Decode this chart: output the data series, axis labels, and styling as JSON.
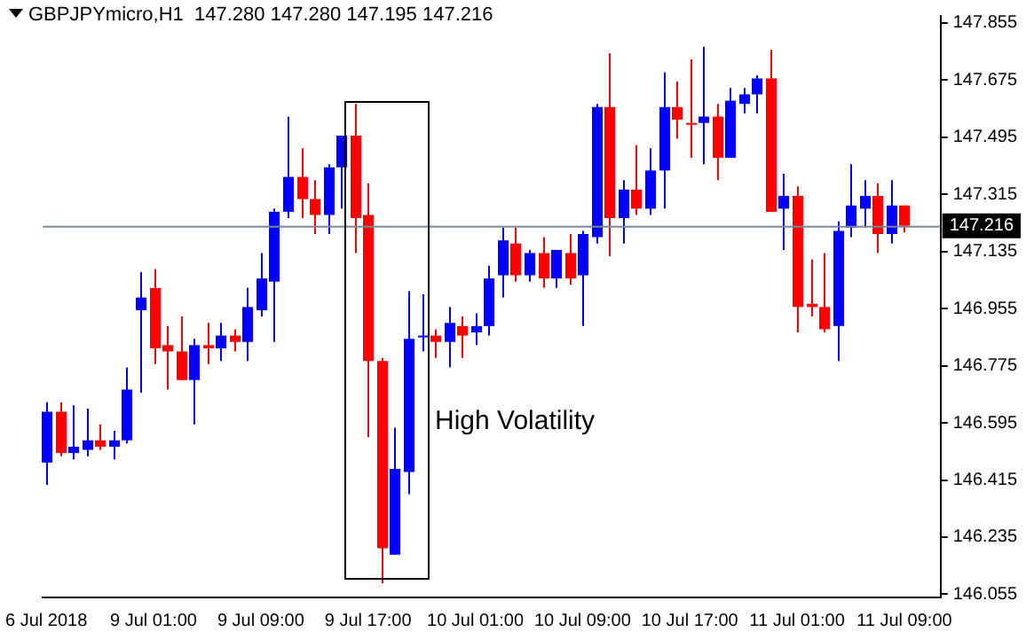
{
  "chart_data": {
    "type": "candlestick",
    "title": "GBPJPYmicro,H1  147.280 147.280 147.195 147.216",
    "categories": [
      "6 Jul 2018",
      null,
      null,
      null,
      null,
      null,
      null,
      null,
      "9 Jul 01:00",
      null,
      null,
      null,
      null,
      null,
      null,
      null,
      "9 Jul 09:00",
      null,
      null,
      null,
      null,
      null,
      null,
      null,
      "9 Jul 17:00",
      null,
      null,
      null,
      null,
      null,
      null,
      null,
      "10 Jul 01:00",
      null,
      null,
      null,
      null,
      null,
      null,
      null,
      "10 Jul 09:00",
      null,
      null,
      null,
      null,
      null,
      null,
      null,
      "10 Jul 17:00",
      null,
      null,
      null,
      null,
      null,
      null,
      null,
      "11 Jul 01:00",
      null,
      null,
      null,
      null,
      null,
      null,
      null,
      "11 Jul 09:00"
    ],
    "ohlc": [
      [
        146.47,
        146.66,
        146.4,
        146.63
      ],
      [
        146.63,
        146.66,
        146.49,
        146.5
      ],
      [
        146.5,
        146.65,
        146.48,
        146.52
      ],
      [
        146.51,
        146.64,
        146.49,
        146.54
      ],
      [
        146.54,
        146.59,
        146.51,
        146.52
      ],
      [
        146.52,
        146.57,
        146.48,
        146.54
      ],
      [
        146.54,
        146.77,
        146.53,
        146.7
      ],
      [
        146.95,
        147.07,
        146.69,
        146.99
      ],
      [
        147.02,
        147.08,
        146.78,
        146.83
      ],
      [
        146.84,
        146.9,
        146.7,
        146.82
      ],
      [
        146.82,
        146.93,
        146.73,
        146.73
      ],
      [
        146.73,
        146.86,
        146.59,
        146.84
      ],
      [
        146.84,
        146.91,
        146.78,
        146.83
      ],
      [
        146.83,
        146.91,
        146.79,
        146.87
      ],
      [
        146.87,
        146.89,
        146.82,
        146.85
      ],
      [
        146.85,
        147.02,
        146.79,
        146.96
      ],
      [
        146.95,
        147.13,
        146.93,
        147.05
      ],
      [
        147.04,
        147.27,
        146.85,
        147.26
      ],
      [
        147.26,
        147.56,
        147.24,
        147.37
      ],
      [
        147.37,
        147.46,
        147.24,
        147.3
      ],
      [
        147.3,
        147.36,
        147.19,
        147.25
      ],
      [
        147.25,
        147.41,
        147.19,
        147.4
      ],
      [
        147.4,
        147.5,
        147.27,
        147.5
      ],
      [
        147.5,
        147.6,
        147.13,
        147.24
      ],
      [
        147.25,
        147.35,
        146.55,
        146.79
      ],
      [
        146.79,
        146.8,
        146.09,
        146.2
      ],
      [
        146.18,
        146.58,
        146.18,
        146.45
      ],
      [
        146.44,
        147.01,
        146.37,
        146.86
      ],
      [
        146.87,
        147,
        146.82,
        146.87
      ],
      [
        146.87,
        146.89,
        146.8,
        146.85
      ],
      [
        146.85,
        146.96,
        146.77,
        146.91
      ],
      [
        146.9,
        146.93,
        146.8,
        146.87
      ],
      [
        146.88,
        146.94,
        146.84,
        146.9
      ],
      [
        146.9,
        147.09,
        146.87,
        147.05
      ],
      [
        147.06,
        147.21,
        146.99,
        147.17
      ],
      [
        147.16,
        147.21,
        147.04,
        147.06
      ],
      [
        147.06,
        147.14,
        147.04,
        147.13
      ],
      [
        147.13,
        147.18,
        147.02,
        147.05
      ],
      [
        147.05,
        147.14,
        147.02,
        147.14
      ],
      [
        147.13,
        147.19,
        147.03,
        147.05
      ],
      [
        147.06,
        147.2,
        146.9,
        147.19
      ],
      [
        147.18,
        147.6,
        147.16,
        147.59
      ],
      [
        147.59,
        147.76,
        147.12,
        147.24
      ],
      [
        147.24,
        147.36,
        147.16,
        147.33
      ],
      [
        147.33,
        147.47,
        147.25,
        147.27
      ],
      [
        147.27,
        147.46,
        147.25,
        147.39
      ],
      [
        147.39,
        147.7,
        147.27,
        147.59
      ],
      [
        147.59,
        147.67,
        147.49,
        147.55
      ],
      [
        147.54,
        147.74,
        147.43,
        147.54
      ],
      [
        147.54,
        147.78,
        147.41,
        147.56
      ],
      [
        147.56,
        147.6,
        147.36,
        147.43
      ],
      [
        147.43,
        147.65,
        147.43,
        147.61
      ],
      [
        147.6,
        147.65,
        147.57,
        147.63
      ],
      [
        147.63,
        147.69,
        147.57,
        147.68
      ],
      [
        147.68,
        147.77,
        147.26,
        147.26
      ],
      [
        147.27,
        147.38,
        147.14,
        147.31
      ],
      [
        147.31,
        147.34,
        146.88,
        146.96
      ],
      [
        146.97,
        147.11,
        146.93,
        146.96
      ],
      [
        146.96,
        147.13,
        146.88,
        146.89
      ],
      [
        146.9,
        147.23,
        146.79,
        147.2
      ],
      [
        147.21,
        147.41,
        147.18,
        147.28
      ],
      [
        147.27,
        147.36,
        147.21,
        147.31
      ],
      [
        147.31,
        147.35,
        147.13,
        147.19
      ],
      [
        147.19,
        147.36,
        147.16,
        147.28
      ],
      [
        147.28,
        147.28,
        147.195,
        147.216
      ]
    ],
    "colors": [
      "#0000ff",
      "#ff0000",
      "#0000ff",
      "#0000ff",
      "#ff0000",
      "#0000ff",
      "#0000ff",
      "#0000ff",
      "#ff0000",
      "#ff0000",
      "#ff0000",
      "#0000ff",
      "#ff0000",
      "#0000ff",
      "#ff0000",
      "#0000ff",
      "#0000ff",
      "#0000ff",
      "#0000ff",
      "#ff0000",
      "#ff0000",
      "#0000ff",
      "#0000ff",
      "#ff0000",
      "#ff0000",
      "#ff0000",
      "#0000ff",
      "#0000ff",
      "#0000ff",
      "#ff0000",
      "#0000ff",
      "#ff0000",
      "#0000ff",
      "#0000ff",
      "#0000ff",
      "#ff0000",
      "#0000ff",
      "#ff0000",
      "#0000ff",
      "#ff0000",
      "#0000ff",
      "#0000ff",
      "#ff0000",
      "#0000ff",
      "#ff0000",
      "#0000ff",
      "#0000ff",
      "#ff0000",
      "#ff0000",
      "#0000ff",
      "#ff0000",
      "#0000ff",
      "#0000ff",
      "#0000ff",
      "#ff0000",
      "#0000ff",
      "#ff0000",
      "#ff0000",
      "#ff0000",
      "#0000ff",
      "#0000ff",
      "#0000ff",
      "#ff0000",
      "#0000ff",
      "#ff0000"
    ],
    "ylim": [
      146.045,
      147.877
    ],
    "yticks": [
      146.055,
      146.235,
      146.415,
      146.595,
      146.775,
      146.955,
      147.135,
      147.315,
      147.495,
      147.675,
      147.855
    ],
    "ref_lines": [
      {
        "axis": "y",
        "value": 147.216,
        "label": "147.216",
        "color": "#778899"
      }
    ],
    "annotations": [
      "High Volatility"
    ],
    "grid": false,
    "legend": false
  }
}
